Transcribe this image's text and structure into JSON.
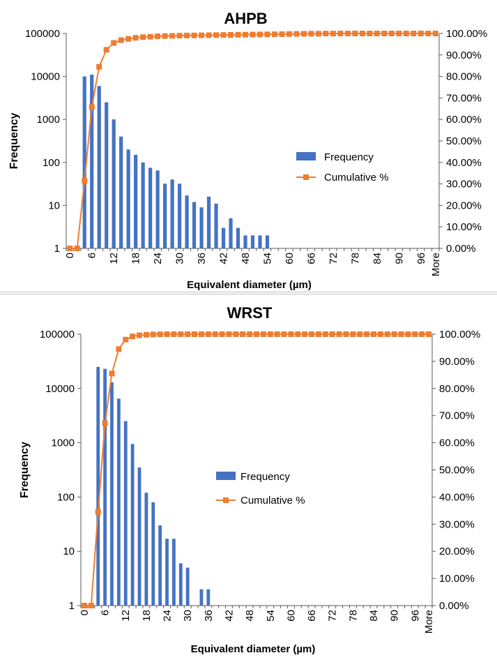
{
  "colors": {
    "frequency": "#4472C4",
    "cumulative": "#ED7D31",
    "axis": "#595959"
  },
  "chart_data": [
    {
      "type": "bar",
      "title": "AHPB",
      "xlabel": "Equivalent diameter  (µm)",
      "ylabel": "Frequency",
      "y_scale": "log",
      "ylim": [
        1,
        100000
      ],
      "y2lim": [
        0,
        1
      ],
      "grid": false,
      "legend_position": "center-right",
      "categories": [
        "0",
        "2",
        "4",
        "6",
        "8",
        "10",
        "12",
        "14",
        "16",
        "18",
        "20",
        "22",
        "24",
        "26",
        "28",
        "30",
        "32",
        "34",
        "36",
        "38",
        "40",
        "42",
        "44",
        "46",
        "48",
        "50",
        "52",
        "54",
        "56",
        "58",
        "60",
        "62",
        "64",
        "66",
        "68",
        "70",
        "72",
        "74",
        "76",
        "78",
        "80",
        "82",
        "84",
        "86",
        "88",
        "90",
        "92",
        "94",
        "96",
        "98",
        "More"
      ],
      "x_tick_labels": [
        "0",
        "6",
        "12",
        "18",
        "24",
        "30",
        "36",
        "42",
        "48",
        "54",
        "60",
        "66",
        "72",
        "78",
        "84",
        "90",
        "96",
        "More"
      ],
      "y_tick_labels": [
        "1",
        "10",
        "100",
        "1000",
        "10000",
        "100000"
      ],
      "y2_tick_labels": [
        "0.00%",
        "10.00%",
        "20.00%",
        "30.00%",
        "40.00%",
        "50.00%",
        "60.00%",
        "70.00%",
        "80.00%",
        "90.00%",
        "100.00%"
      ],
      "series": [
        {
          "name": "Frequency",
          "type": "bar",
          "values": [
            0,
            0,
            10000,
            11000,
            6000,
            2500,
            1000,
            400,
            200,
            150,
            100,
            75,
            65,
            32,
            40,
            32,
            17,
            12,
            9,
            16,
            11,
            3,
            5,
            3,
            2,
            2,
            2,
            2,
            0,
            0,
            0,
            0,
            0,
            0,
            0,
            0,
            0,
            0,
            0,
            0,
            0,
            0,
            0,
            0,
            0,
            0,
            0,
            0,
            0,
            0,
            0
          ]
        },
        {
          "name": "Cumulative %",
          "type": "line",
          "values": [
            0,
            0,
            31.5,
            65.8,
            84.5,
            92.4,
            95.6,
            96.9,
            97.5,
            98.0,
            98.3,
            98.5,
            98.7,
            98.8,
            98.9,
            99.0,
            99.05,
            99.1,
            99.15,
            99.2,
            99.25,
            99.3,
            99.35,
            99.4,
            99.45,
            99.5,
            99.55,
            99.6,
            99.65,
            99.7,
            99.75,
            99.8,
            99.85,
            99.9,
            99.9,
            99.95,
            99.95,
            100,
            100,
            100,
            100,
            100,
            100,
            100,
            100,
            100,
            100,
            100,
            100,
            100,
            100
          ]
        }
      ]
    },
    {
      "type": "bar",
      "title": "WRST",
      "xlabel": "Equivalent diameter (µm)",
      "ylabel": "Frequency",
      "y_scale": "log",
      "ylim": [
        1,
        100000
      ],
      "y2lim": [
        0,
        1
      ],
      "grid": false,
      "legend_position": "center",
      "categories": [
        "0",
        "2",
        "4",
        "6",
        "8",
        "10",
        "12",
        "14",
        "16",
        "18",
        "20",
        "22",
        "24",
        "26",
        "28",
        "30",
        "32",
        "34",
        "36",
        "38",
        "40",
        "42",
        "44",
        "46",
        "48",
        "50",
        "52",
        "54",
        "56",
        "58",
        "60",
        "62",
        "64",
        "66",
        "68",
        "70",
        "72",
        "74",
        "76",
        "78",
        "80",
        "82",
        "84",
        "86",
        "88",
        "90",
        "92",
        "94",
        "96",
        "98",
        "More"
      ],
      "x_tick_labels": [
        "0",
        "6",
        "12",
        "18",
        "24",
        "30",
        "36",
        "42",
        "48",
        "54",
        "60",
        "66",
        "72",
        "78",
        "84",
        "90",
        "96",
        "More"
      ],
      "y_tick_labels": [
        "1",
        "10",
        "100",
        "1000",
        "10000",
        "100000"
      ],
      "y2_tick_labels": [
        "0.00%",
        "10.00%",
        "20.00%",
        "30.00%",
        "40.00%",
        "50.00%",
        "60.00%",
        "70.00%",
        "80.00%",
        "90.00%",
        "100.00%"
      ],
      "series": [
        {
          "name": "Frequency",
          "type": "bar",
          "values": [
            0,
            0,
            25000,
            23000,
            13000,
            6500,
            2500,
            950,
            350,
            120,
            80,
            30,
            17,
            17,
            6,
            5,
            0,
            2,
            2,
            0,
            0,
            0,
            0,
            0,
            0,
            0,
            0,
            0,
            0,
            0,
            0,
            0,
            0,
            0,
            0,
            0,
            0,
            0,
            0,
            0,
            0,
            0,
            0,
            0,
            0,
            0,
            0,
            0,
            0,
            0,
            0
          ]
        },
        {
          "name": "Cumulative %",
          "type": "line",
          "values": [
            0,
            0,
            34.5,
            67.2,
            85.5,
            94.5,
            98.0,
            99.2,
            99.6,
            99.8,
            99.9,
            99.95,
            100,
            100,
            100,
            100,
            100,
            100,
            100,
            100,
            100,
            100,
            100,
            100,
            100,
            100,
            100,
            100,
            100,
            100,
            100,
            100,
            100,
            100,
            100,
            100,
            100,
            100,
            100,
            100,
            100,
            100,
            100,
            100,
            100,
            100,
            100,
            100,
            100,
            100,
            100
          ]
        }
      ]
    }
  ]
}
